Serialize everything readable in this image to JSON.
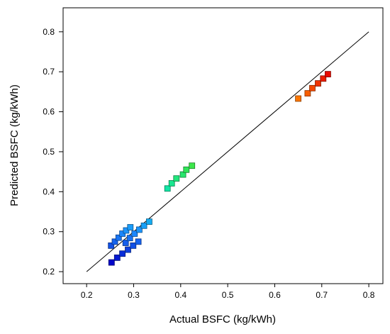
{
  "chart_data": {
    "type": "scatter",
    "title": "",
    "xlabel": "Actual BSFC (kg/kWh)",
    "ylabel": "Predicted BSFC (kg/kWh)",
    "xlim": [
      0.15,
      0.83
    ],
    "ylim": [
      0.17,
      0.86
    ],
    "xticks": [
      0.2,
      0.3,
      0.4,
      0.5,
      0.6,
      0.7,
      0.8
    ],
    "yticks": [
      0.2,
      0.3,
      0.4,
      0.5,
      0.6,
      0.7,
      0.8
    ],
    "xtick_labels": [
      "0.2",
      "0.3",
      "0.4",
      "0.5",
      "0.6",
      "0.7",
      "0.8"
    ],
    "ytick_labels": [
      "0.2",
      "0.3",
      "0.4",
      "0.5",
      "0.6",
      "0.7",
      "0.8"
    ],
    "grid": false,
    "legend": "none",
    "reference_line": {
      "x": [
        0.2,
        0.8
      ],
      "y": [
        0.2,
        0.8
      ]
    },
    "color_scale": {
      "domain": [
        0.22,
        0.7
      ],
      "stops": [
        "#0000c8",
        "#1e90ff",
        "#00e6d2",
        "#32e650",
        "#e6e600",
        "#ff8c00",
        "#e60000"
      ]
    },
    "points": [
      {
        "x": 0.253,
        "y": 0.223
      },
      {
        "x": 0.265,
        "y": 0.235
      },
      {
        "x": 0.276,
        "y": 0.245
      },
      {
        "x": 0.288,
        "y": 0.255
      },
      {
        "x": 0.299,
        "y": 0.265
      },
      {
        "x": 0.31,
        "y": 0.275
      },
      {
        "x": 0.252,
        "y": 0.265
      },
      {
        "x": 0.26,
        "y": 0.275
      },
      {
        "x": 0.268,
        "y": 0.285
      },
      {
        "x": 0.276,
        "y": 0.295
      },
      {
        "x": 0.284,
        "y": 0.303
      },
      {
        "x": 0.293,
        "y": 0.311
      },
      {
        "x": 0.283,
        "y": 0.272
      },
      {
        "x": 0.292,
        "y": 0.284
      },
      {
        "x": 0.302,
        "y": 0.295
      },
      {
        "x": 0.312,
        "y": 0.305
      },
      {
        "x": 0.322,
        "y": 0.315
      },
      {
        "x": 0.333,
        "y": 0.325
      },
      {
        "x": 0.372,
        "y": 0.408
      },
      {
        "x": 0.381,
        "y": 0.421
      },
      {
        "x": 0.391,
        "y": 0.433
      },
      {
        "x": 0.405,
        "y": 0.443
      },
      {
        "x": 0.412,
        "y": 0.455
      },
      {
        "x": 0.424,
        "y": 0.465
      },
      {
        "x": 0.65,
        "y": 0.633
      },
      {
        "x": 0.67,
        "y": 0.646
      },
      {
        "x": 0.68,
        "y": 0.659
      },
      {
        "x": 0.692,
        "y": 0.671
      },
      {
        "x": 0.703,
        "y": 0.683
      },
      {
        "x": 0.713,
        "y": 0.694
      }
    ]
  }
}
